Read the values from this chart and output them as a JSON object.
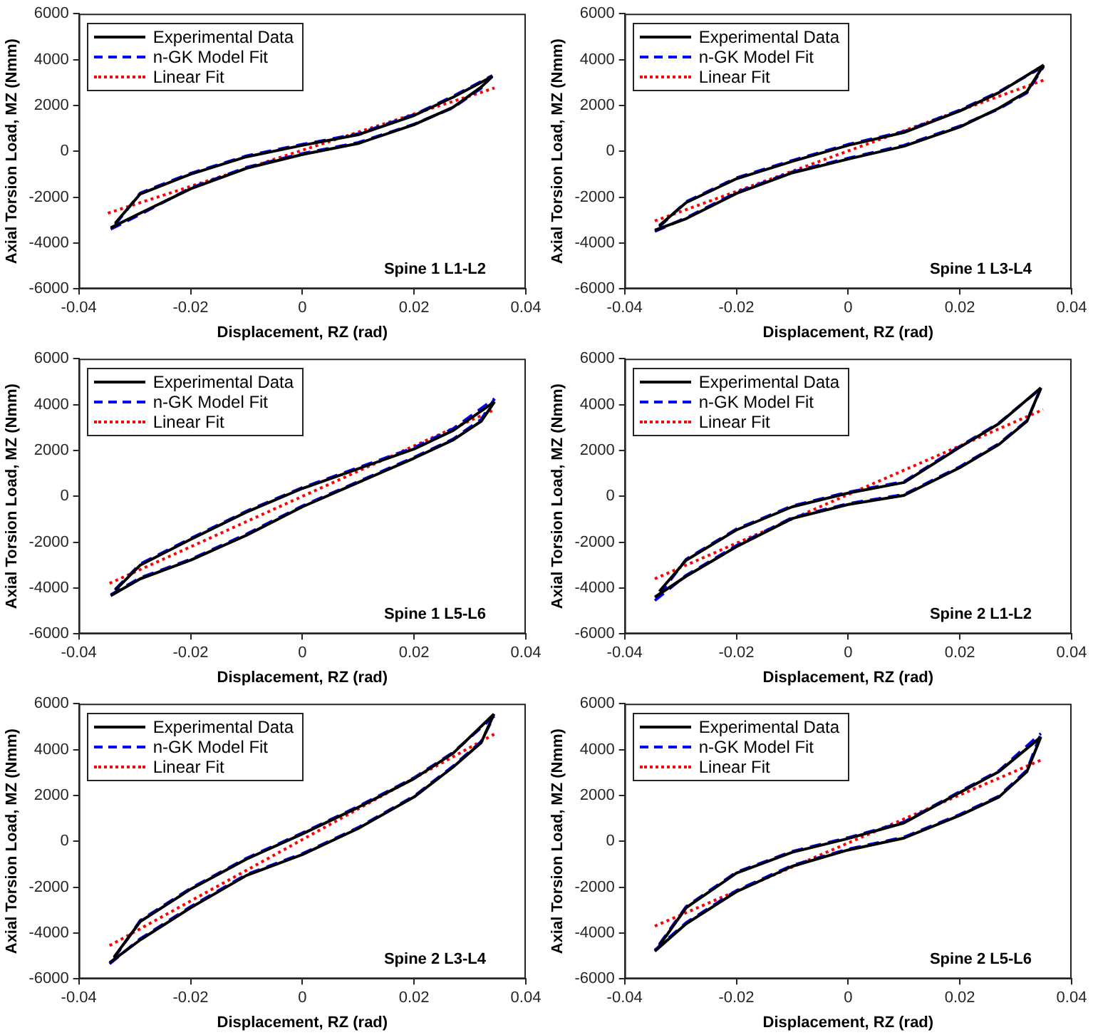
{
  "chart_data": [
    {
      "type": "line",
      "xlabel": "Displacement, RZ (rad)",
      "ylabel": "Axial Torsion Load, MZ (Nmm)",
      "xlim": [
        -0.04,
        0.04
      ],
      "xticks": [
        -0.04,
        -0.02,
        0,
        0.02,
        0.04
      ],
      "ylim": [
        -6000,
        6000
      ],
      "yticks": [
        -6000,
        -4000,
        -2000,
        0,
        2000,
        4000,
        6000
      ],
      "grid": false,
      "legend": "top left",
      "marker": "none",
      "annotations": [
        "Spine 1 L1-L2"
      ],
      "series": [
        {
          "name": "Experimental Data",
          "color": "#000000",
          "line_style": "solid",
          "x": [
            -0.0343,
            -0.029,
            -0.02,
            -0.01,
            0,
            0.01,
            0.02,
            0.027,
            0.032,
            0.034
          ],
          "values": [
            -3340,
            -2700,
            -1640,
            -740,
            -140,
            340,
            1160,
            1920,
            2800,
            3260
          ]
        },
        {
          "color": "#000000",
          "line_style": "solid",
          "x": [
            -0.0335,
            -0.029,
            -0.02,
            -0.01,
            0,
            0.01,
            0.02,
            0.027,
            0.034
          ],
          "values": [
            -3140,
            -1860,
            -1000,
            -240,
            260,
            720,
            1560,
            2360,
            3260
          ]
        },
        {
          "name": "n-GK Model Fit",
          "color": "#0000ff",
          "line_style": "dashed",
          "x": [
            -0.0343,
            -0.029,
            -0.02,
            -0.01,
            0,
            0.01,
            0.02,
            0.027,
            0.032,
            0.034
          ],
          "values": [
            -3400,
            -2750,
            -1600,
            -700,
            -100,
            380,
            1180,
            1900,
            2750,
            3300
          ]
        },
        {
          "color": "#0000ff",
          "line_style": "dashed",
          "x": [
            -0.0335,
            -0.029,
            -0.02,
            -0.01,
            0,
            0.01,
            0.02,
            0.027,
            0.034
          ],
          "values": [
            -3200,
            -1820,
            -960,
            -200,
            300,
            760,
            1600,
            2400,
            3300
          ]
        },
        {
          "name": "Linear Fit",
          "color": "#ff0000",
          "line_style": "dotted",
          "x": [
            -0.0348,
            0.0344
          ],
          "values": [
            -2700,
            2760
          ]
        }
      ]
    },
    {
      "type": "line",
      "xlabel": "Displacement, RZ (rad)",
      "ylabel": "Axial Torsion Load, MZ (Nmm)",
      "xlim": [
        -0.04,
        0.04
      ],
      "xticks": [
        -0.04,
        -0.02,
        0,
        0.02,
        0.04
      ],
      "ylim": [
        -6000,
        6000
      ],
      "yticks": [
        -6000,
        -4000,
        -2000,
        0,
        2000,
        4000,
        6000
      ],
      "grid": false,
      "legend": "top left",
      "marker": "none",
      "annotations": [
        "Spine 1 L3-L4"
      ],
      "series": [
        {
          "name": "Experimental Data",
          "color": "#000000",
          "line_style": "solid",
          "x": [
            -0.0346,
            -0.029,
            -0.02,
            -0.01,
            0,
            0.01,
            0.02,
            0.027,
            0.032,
            0.035
          ],
          "values": [
            -3440,
            -2940,
            -1840,
            -940,
            -340,
            220,
            1060,
            1880,
            2600,
            3760
          ]
        },
        {
          "color": "#000000",
          "line_style": "solid",
          "x": [
            -0.0338,
            -0.029,
            -0.02,
            -0.01,
            0,
            0.01,
            0.02,
            0.027,
            0.035
          ],
          "values": [
            -3240,
            -2240,
            -1200,
            -440,
            260,
            820,
            1760,
            2560,
            3760
          ]
        },
        {
          "name": "n-GK Model Fit",
          "color": "#0000ff",
          "line_style": "dashed",
          "x": [
            -0.0346,
            -0.029,
            -0.02,
            -0.01,
            0,
            0.01,
            0.02,
            0.027,
            0.032,
            0.035
          ],
          "values": [
            -3500,
            -2900,
            -1800,
            -900,
            -300,
            260,
            1100,
            1850,
            2550,
            3700
          ]
        },
        {
          "color": "#0000ff",
          "line_style": "dashed",
          "x": [
            -0.0338,
            -0.029,
            -0.02,
            -0.01,
            0,
            0.01,
            0.02,
            0.027,
            0.035
          ],
          "values": [
            -3300,
            -2200,
            -1160,
            -400,
            300,
            860,
            1800,
            2600,
            3700
          ]
        },
        {
          "name": "Linear Fit",
          "color": "#ff0000",
          "line_style": "dotted",
          "x": [
            -0.0346,
            0.0352
          ],
          "values": [
            -3040,
            3120
          ]
        }
      ]
    },
    {
      "type": "line",
      "xlabel": "Displacement, RZ (rad)",
      "ylabel": "Axial Torsion Load, MZ (Nmm)",
      "xlim": [
        -0.04,
        0.04
      ],
      "xticks": [
        -0.04,
        -0.02,
        0,
        0.02,
        0.04
      ],
      "ylim": [
        -6000,
        6000
      ],
      "yticks": [
        -6000,
        -4000,
        -2000,
        0,
        2000,
        4000,
        6000
      ],
      "grid": false,
      "legend": "top left",
      "marker": "none",
      "annotations": [
        "Spine 1 L5-L6"
      ],
      "series": [
        {
          "name": "Experimental Data",
          "color": "#000000",
          "line_style": "solid",
          "x": [
            -0.0343,
            -0.029,
            -0.02,
            -0.01,
            0,
            0.01,
            0.02,
            0.027,
            0.032,
            0.0344
          ],
          "values": [
            -4340,
            -3600,
            -2790,
            -1700,
            -460,
            600,
            1660,
            2460,
            3270,
            4120
          ]
        },
        {
          "color": "#000000",
          "line_style": "solid",
          "x": [
            -0.0335,
            -0.029,
            -0.02,
            -0.01,
            0,
            0.01,
            0.02,
            0.027,
            0.0344
          ],
          "values": [
            -4100,
            -3000,
            -1880,
            -690,
            340,
            1200,
            2060,
            2870,
            4120
          ]
        },
        {
          "name": "n-GK Model Fit",
          "color": "#0000ff",
          "line_style": "dashed",
          "x": [
            -0.0343,
            -0.029,
            -0.02,
            -0.01,
            0,
            0.01,
            0.02,
            0.027,
            0.032,
            0.0344
          ],
          "values": [
            -4300,
            -3550,
            -2750,
            -1650,
            -420,
            640,
            1700,
            2500,
            3350,
            4250
          ]
        },
        {
          "color": "#0000ff",
          "line_style": "dashed",
          "x": [
            -0.0335,
            -0.029,
            -0.02,
            -0.01,
            0,
            0.01,
            0.02,
            0.027,
            0.0344
          ],
          "values": [
            -4060,
            -2950,
            -1840,
            -650,
            380,
            1250,
            2120,
            2950,
            4250
          ]
        },
        {
          "name": "Linear Fit",
          "color": "#ff0000",
          "line_style": "dotted",
          "x": [
            -0.0345,
            0.0344
          ],
          "values": [
            -3800,
            3780
          ]
        }
      ]
    },
    {
      "type": "line",
      "xlabel": "Displacement, RZ (rad)",
      "ylabel": "Axial Torsion Load, MZ (Nmm)",
      "xlim": [
        -0.04,
        0.04
      ],
      "xticks": [
        -0.04,
        -0.02,
        0,
        0.02,
        0.04
      ],
      "ylim": [
        -6000,
        6000
      ],
      "yticks": [
        -6000,
        -4000,
        -2000,
        0,
        2000,
        4000,
        6000
      ],
      "grid": false,
      "legend": "top left",
      "marker": "none",
      "annotations": [
        "Spine 2 L1-L2"
      ],
      "series": [
        {
          "name": "Experimental Data",
          "color": "#000000",
          "line_style": "solid",
          "x": [
            -0.0346,
            -0.029,
            -0.02,
            -0.01,
            0,
            0.01,
            0.02,
            0.027,
            0.032,
            0.0345
          ],
          "values": [
            -4400,
            -3490,
            -2200,
            -970,
            -360,
            40,
            1250,
            2260,
            3270,
            4730
          ]
        },
        {
          "color": "#000000",
          "line_style": "solid",
          "x": [
            -0.0338,
            -0.029,
            -0.02,
            -0.01,
            0,
            0.01,
            0.02,
            0.027,
            0.0345
          ],
          "values": [
            -4150,
            -2790,
            -1470,
            -460,
            140,
            600,
            2140,
            3170,
            4730
          ]
        },
        {
          "name": "n-GK Model Fit",
          "color": "#0000ff",
          "line_style": "dashed",
          "x": [
            -0.0346,
            -0.029,
            -0.02,
            -0.01,
            0,
            0.01,
            0.02,
            0.027,
            0.032,
            0.0345
          ],
          "values": [
            -4550,
            -3450,
            -2150,
            -930,
            -320,
            80,
            1290,
            2300,
            3300,
            4700
          ]
        },
        {
          "color": "#0000ff",
          "line_style": "dashed",
          "x": [
            -0.0338,
            -0.029,
            -0.02,
            -0.01,
            0,
            0.01,
            0.02,
            0.027,
            0.0345
          ],
          "values": [
            -4300,
            -2750,
            -1430,
            -420,
            180,
            640,
            2180,
            3200,
            4700
          ]
        },
        {
          "name": "Linear Fit",
          "color": "#ff0000",
          "line_style": "dotted",
          "x": [
            -0.0346,
            0.0349
          ],
          "values": [
            -3600,
            3780
          ]
        }
      ]
    },
    {
      "type": "line",
      "xlabel": "Displacement, RZ (rad)",
      "ylabel": "Axial Torsion Load, MZ (Nmm)",
      "xlim": [
        -0.04,
        0.04
      ],
      "xticks": [
        -0.04,
        -0.02,
        0,
        0.02,
        0.04
      ],
      "ylim": [
        -6000,
        6000
      ],
      "yticks": [
        -6000,
        -4000,
        -2000,
        0,
        2000,
        4000,
        6000
      ],
      "grid": false,
      "legend": "top left",
      "marker": "none",
      "annotations": [
        "Spine 2 L3-L4"
      ],
      "series": [
        {
          "name": "Experimental Data",
          "color": "#000000",
          "line_style": "solid",
          "x": [
            -0.0345,
            -0.029,
            -0.02,
            -0.01,
            0,
            0.01,
            0.02,
            0.027,
            0.032,
            0.0343
          ],
          "values": [
            -5300,
            -4300,
            -2900,
            -1490,
            -580,
            560,
            1930,
            3240,
            4300,
            5550
          ]
        },
        {
          "color": "#000000",
          "line_style": "solid",
          "x": [
            -0.0337,
            -0.029,
            -0.02,
            -0.01,
            0,
            0.01,
            0.02,
            0.027,
            0.0343
          ],
          "values": [
            -5050,
            -3500,
            -2090,
            -780,
            320,
            1480,
            2730,
            3840,
            5550
          ]
        },
        {
          "name": "n-GK Model Fit",
          "color": "#0000ff",
          "line_style": "dashed",
          "x": [
            -0.0345,
            -0.029,
            -0.02,
            -0.01,
            0,
            0.01,
            0.02,
            0.027,
            0.032,
            0.0343
          ],
          "values": [
            -5350,
            -4250,
            -2850,
            -1450,
            -540,
            600,
            1970,
            3280,
            4350,
            5450
          ]
        },
        {
          "color": "#0000ff",
          "line_style": "dashed",
          "x": [
            -0.0337,
            -0.029,
            -0.02,
            -0.01,
            0,
            0.01,
            0.02,
            0.027,
            0.0343
          ],
          "values": [
            -5100,
            -3450,
            -2050,
            -740,
            360,
            1520,
            2770,
            3880,
            5450
          ]
        },
        {
          "name": "Linear Fit",
          "color": "#ff0000",
          "line_style": "dotted",
          "x": [
            -0.0345,
            0.0344
          ],
          "values": [
            -4550,
            4680
          ]
        }
      ]
    },
    {
      "type": "line",
      "xlabel": "Displacement, RZ (rad)",
      "ylabel": "Axial Torsion Load, MZ (Nmm)",
      "xlim": [
        -0.04,
        0.04
      ],
      "xticks": [
        -0.04,
        -0.02,
        0,
        0.02,
        0.04
      ],
      "ylim": [
        -6000,
        6000
      ],
      "yticks": [
        -6000,
        -4000,
        -2000,
        0,
        2000,
        4000,
        6000
      ],
      "grid": false,
      "legend": "top left",
      "marker": "none",
      "annotations": [
        "Spine 2 L5-L6"
      ],
      "series": [
        {
          "name": "Experimental Data",
          "color": "#000000",
          "line_style": "solid",
          "x": [
            -0.0346,
            -0.029,
            -0.02,
            -0.01,
            0,
            0.01,
            0.02,
            0.027,
            0.032,
            0.0345
          ],
          "values": [
            -4800,
            -3600,
            -2200,
            -1090,
            -380,
            140,
            1130,
            1930,
            3040,
            4550
          ]
        },
        {
          "color": "#000000",
          "line_style": "solid",
          "x": [
            -0.0338,
            -0.029,
            -0.02,
            -0.01,
            0,
            0.01,
            0.02,
            0.027,
            0.0345
          ],
          "values": [
            -4550,
            -2900,
            -1390,
            -480,
            120,
            800,
            2130,
            3040,
            4550
          ]
        },
        {
          "name": "n-GK Model Fit",
          "color": "#0000ff",
          "line_style": "dashed",
          "x": [
            -0.0346,
            -0.029,
            -0.02,
            -0.01,
            0,
            0.01,
            0.02,
            0.027,
            0.032,
            0.0345
          ],
          "values": [
            -4750,
            -3550,
            -2150,
            -1050,
            -340,
            180,
            1170,
            1970,
            3100,
            4700
          ]
        },
        {
          "color": "#0000ff",
          "line_style": "dashed",
          "x": [
            -0.0338,
            -0.029,
            -0.02,
            -0.01,
            0,
            0.01,
            0.02,
            0.027,
            0.0345
          ],
          "values": [
            -4500,
            -2850,
            -1350,
            -440,
            160,
            840,
            2170,
            3080,
            4700
          ]
        },
        {
          "name": "Linear Fit",
          "color": "#ff0000",
          "line_style": "dotted",
          "x": [
            -0.0346,
            0.0349
          ],
          "values": [
            -3700,
            3580
          ]
        }
      ]
    }
  ]
}
